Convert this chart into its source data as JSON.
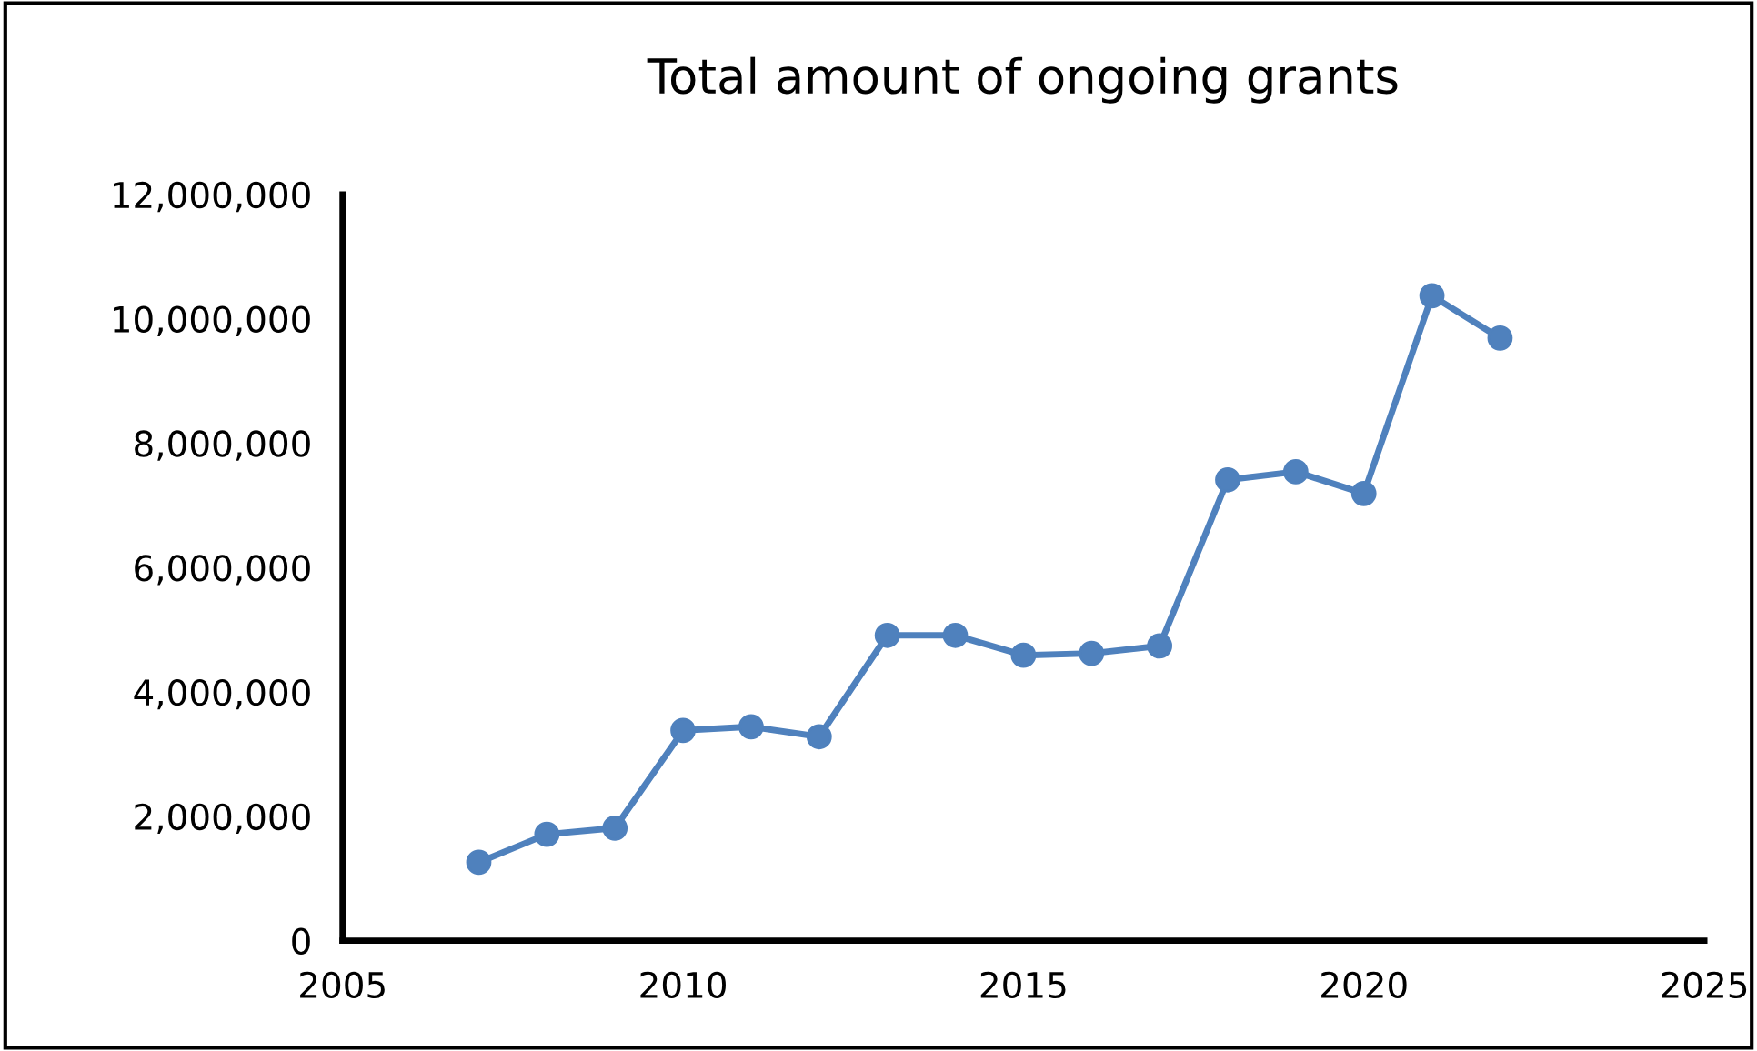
{
  "chart_data": {
    "type": "line",
    "title": "Total amount of ongoing grants",
    "x": [
      2007,
      2008,
      2009,
      2010,
      2011,
      2012,
      2013,
      2014,
      2015,
      2016,
      2017,
      2018,
      2019,
      2020,
      2021,
      2022
    ],
    "series": [
      {
        "color": "#4f81bd",
        "values": [
          1260000,
          1710000,
          1810000,
          3380000,
          3440000,
          3280000,
          4910000,
          4910000,
          4590000,
          4620000,
          4740000,
          7410000,
          7540000,
          7190000,
          10370000,
          9690000
        ]
      }
    ],
    "xlim": [
      2005,
      2025
    ],
    "xticks": [
      2005,
      2010,
      2015,
      2020,
      2025
    ],
    "ylim": [
      0,
      12000000
    ],
    "yticks": [
      {
        "value": 0,
        "label": "0"
      },
      {
        "value": 2000000,
        "label": "2,000,000"
      },
      {
        "value": 4000000,
        "label": "4,000,000"
      },
      {
        "value": 6000000,
        "label": "6,000,000"
      },
      {
        "value": 8000000,
        "label": "8,000,000"
      },
      {
        "value": 10000000,
        "label": "10,000,000"
      },
      {
        "value": 12000000,
        "label": "12,000,000"
      }
    ],
    "marker": "circle",
    "line_style": "solid",
    "grid": false
  }
}
